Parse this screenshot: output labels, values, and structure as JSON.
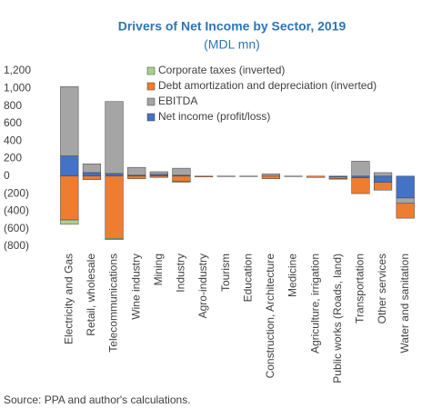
{
  "chart_data": {
    "type": "stacked_bar",
    "title": "Drivers of Net Income by Sector, 2019",
    "subtitle": "(MDL mn)",
    "source": "Source: PPA and author's calculations.",
    "categories": [
      "Electricity and Gas",
      "Retail, wholesale",
      "Telecommunications",
      "Wine industry",
      "Mining",
      "Industry",
      "Agro-industry",
      "Tourism",
      "Education",
      "Construction, Architecture",
      "Medicine",
      "Agriculture, irrigation",
      "Public works (Roads, land)",
      "Transportation",
      "Other services",
      "Water and sanitation"
    ],
    "series": [
      {
        "name": "Net income (profit/loss)",
        "color": "#4472c4",
        "values": [
          230,
          40,
          30,
          10,
          20,
          10,
          0,
          0,
          0,
          0,
          0,
          0,
          -10,
          -20,
          -70,
          -250
        ]
      },
      {
        "name": "EBITDA",
        "color": "#a5a5a5",
        "values": [
          790,
          100,
          820,
          90,
          30,
          80,
          0,
          0,
          0,
          25,
          0,
          0,
          0,
          170,
          40,
          -60
        ]
      },
      {
        "name": "Debt amortization and depreciation (inverted)",
        "color": "#ed7d31",
        "values": [
          -500,
          -40,
          -710,
          -30,
          -15,
          -60,
          -10,
          -5,
          -5,
          -30,
          -5,
          -15,
          -20,
          -180,
          -90,
          -170
        ]
      },
      {
        "name": "Corporate taxes (inverted)",
        "color": "#a9d18e",
        "values": [
          -50,
          0,
          -15,
          0,
          0,
          -10,
          0,
          0,
          0,
          0,
          0,
          0,
          -5,
          0,
          0,
          0
        ]
      }
    ],
    "ylim": [
      -800,
      1200
    ],
    "yticks": [
      {
        "value": -800,
        "label": "(800)"
      },
      {
        "value": -600,
        "label": "(600)"
      },
      {
        "value": -400,
        "label": "(400)"
      },
      {
        "value": -200,
        "label": "(200)"
      },
      0,
      200,
      400,
      600,
      800,
      {
        "value": 1000,
        "label": "1,000"
      },
      {
        "value": 1200,
        "label": "1,200"
      }
    ],
    "legend": "top-right"
  }
}
